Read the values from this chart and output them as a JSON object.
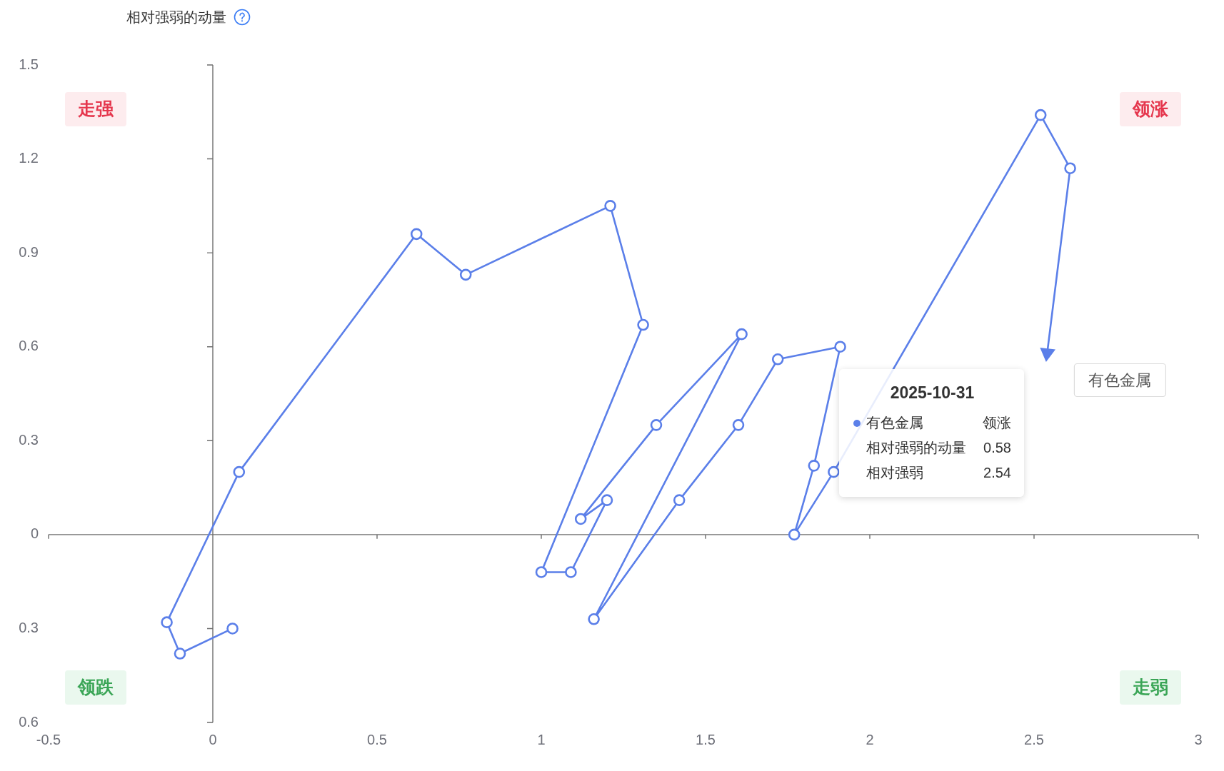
{
  "chart_data": {
    "type": "line",
    "ylabel": "相对强弱的动量",
    "xlim": [
      -0.5,
      3
    ],
    "ylim": [
      -0.6,
      1.5
    ],
    "xticks": [
      -0.5,
      0,
      0.5,
      1,
      1.5,
      2,
      2.5,
      3
    ],
    "yticks": [
      {
        "value": -0.6,
        "label": "0.6"
      },
      {
        "value": -0.3,
        "label": "0.3"
      },
      0,
      0.3,
      0.6,
      0.9,
      1.2,
      1.5
    ],
    "marker": "circle",
    "annotations": [
      "走强",
      "领涨",
      "领跌",
      "走弱",
      "2025-10-31",
      "有色金属",
      "领涨",
      "相对强弱的动量",
      "0.58",
      "相对强弱",
      "2.54"
    ],
    "series": [
      {
        "name": "有色金属",
        "color": "#5b7fe9",
        "x": [
          0.06,
          -0.1,
          -0.14,
          0.08,
          0.62,
          0.77,
          1.21,
          1.31,
          1.0,
          1.09,
          1.2,
          1.12,
          1.35,
          1.61,
          1.16,
          1.42,
          1.6,
          1.72,
          1.91,
          1.83,
          1.77,
          1.89,
          2.52,
          2.61,
          2.54
        ],
        "values": [
          -0.3,
          -0.38,
          -0.28,
          0.2,
          0.96,
          0.83,
          1.05,
          0.67,
          -0.12,
          -0.12,
          0.11,
          0.05,
          0.35,
          0.64,
          -0.27,
          0.11,
          0.35,
          0.56,
          0.6,
          0.22,
          0.0,
          0.2,
          1.34,
          1.17,
          0.58
        ]
      }
    ]
  }
}
